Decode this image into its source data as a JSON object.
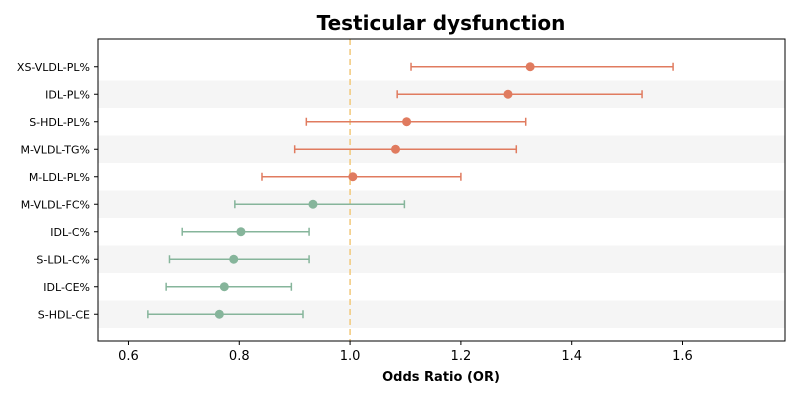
{
  "chart_data": {
    "type": "forest",
    "title": "Testicular dysfunction",
    "xlabel": "Odds Ratio (OR)",
    "ylabel": "",
    "xlim": [
      0.545,
      1.785
    ],
    "xticks": [
      "0.6",
      "0.8",
      "1.0",
      "1.2",
      "1.4",
      "1.6"
    ],
    "xtick_values": [
      0.6,
      0.8,
      1.0,
      1.2,
      1.4,
      1.6
    ],
    "reference_line": 1.0,
    "grid": false,
    "colors": {
      "positive": "#E07B5F",
      "negative": "#86B59B",
      "reference": "#F2C879",
      "band": "#F5F5F5"
    },
    "rows": [
      {
        "label": "XS-VLDL-PL%",
        "or": 1.325,
        "lower": 1.11,
        "upper": 1.583,
        "group": "positive"
      },
      {
        "label": "IDL-PL%",
        "or": 1.285,
        "lower": 1.085,
        "upper": 1.527,
        "group": "positive"
      },
      {
        "label": "S-HDL-PL%",
        "or": 1.102,
        "lower": 0.921,
        "upper": 1.317,
        "group": "positive"
      },
      {
        "label": "M-VLDL-TG%",
        "or": 1.082,
        "lower": 0.9,
        "upper": 1.3,
        "group": "positive"
      },
      {
        "label": "M-LDL-PL%",
        "or": 1.005,
        "lower": 0.841,
        "upper": 1.2,
        "group": "positive"
      },
      {
        "label": "M-VLDL-FC%",
        "or": 0.933,
        "lower": 0.792,
        "upper": 1.098,
        "group": "negative"
      },
      {
        "label": "IDL-C%",
        "or": 0.803,
        "lower": 0.697,
        "upper": 0.926,
        "group": "negative"
      },
      {
        "label": "S-LDL-C%",
        "or": 0.79,
        "lower": 0.674,
        "upper": 0.926,
        "group": "negative"
      },
      {
        "label": "IDL-CE%",
        "or": 0.773,
        "lower": 0.668,
        "upper": 0.894,
        "group": "negative"
      },
      {
        "label": "S-HDL-CE",
        "or": 0.764,
        "lower": 0.635,
        "upper": 0.915,
        "group": "negative"
      }
    ]
  }
}
